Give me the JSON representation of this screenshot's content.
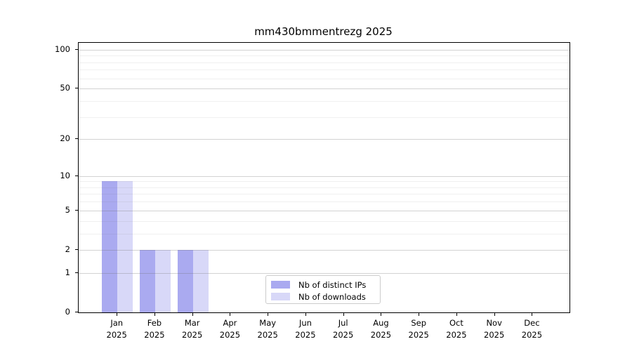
{
  "chart_data": {
    "type": "bar",
    "title": "mm430bmmentrezg 2025",
    "categories": [
      "Jan 2025",
      "Feb 2025",
      "Mar 2025",
      "Apr 2025",
      "May 2025",
      "Jun 2025",
      "Jul 2025",
      "Aug 2025",
      "Sep 2025",
      "Oct 2025",
      "Nov 2025",
      "Dec 2025"
    ],
    "series": [
      {
        "name": "Nb of distinct IPs",
        "color": "#aaaaf0",
        "values": [
          9,
          2,
          2,
          0,
          0,
          0,
          0,
          0,
          0,
          0,
          0,
          0
        ]
      },
      {
        "name": "Nb of downloads",
        "color": "#d8d8f8",
        "values": [
          9,
          2,
          2,
          0,
          0,
          0,
          0,
          0,
          0,
          0,
          0,
          0
        ]
      }
    ],
    "xlabel": "",
    "ylabel": "",
    "y_scale": "log10(1+v)",
    "ylim": [
      0,
      113
    ],
    "y_ticks": [
      0,
      1,
      2,
      5,
      10,
      20,
      50,
      100
    ],
    "y_minor_ticks": [
      3,
      4,
      6,
      7,
      8,
      9,
      30,
      40,
      60,
      70,
      80,
      90
    ],
    "grid": "major and minor horizontal gridlines",
    "legend_position": "lower center, inside plot"
  },
  "colors": {
    "axis": "#000000",
    "background": "#ffffff",
    "major_grid": "rgba(110,110,110,0.30)",
    "minor_grid": "rgba(110,110,110,0.10)",
    "legend_border": "#cccccc"
  }
}
